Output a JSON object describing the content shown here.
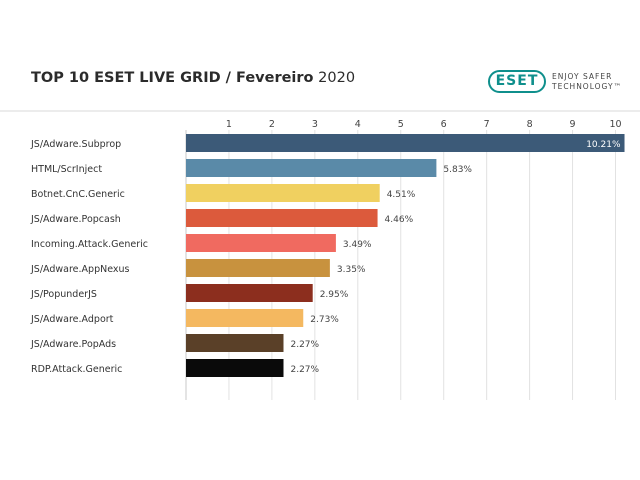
{
  "header": {
    "title_main": "TOP 10 ESET LIVE GRID / Fevereiro",
    "title_year": "2020"
  },
  "logo": {
    "wordmark": "ESET",
    "tagline_line1": "ENJOY SAFER",
    "tagline_line2": "TECHNOLOGY™",
    "color": "#0f8f8c"
  },
  "chart_data": {
    "type": "bar",
    "orientation": "horizontal",
    "categories": [
      "JS/Adware.Subprop",
      "HTML/ScrInject",
      "Botnet.CnC.Generic",
      "JS/Adware.Popcash",
      "Incoming.Attack.Generic",
      "JS/Adware.AppNexus",
      "JS/PopunderJS",
      "JS/Adware.Adport",
      "JS/Adware.PopAds",
      "RDP.Attack.Generic"
    ],
    "values": [
      10.21,
      5.83,
      4.51,
      4.46,
      3.49,
      3.35,
      2.95,
      2.73,
      2.27,
      2.27
    ],
    "value_labels": [
      "10.21%",
      "5.83%",
      "4.51%",
      "4.46%",
      "3.49%",
      "3.35%",
      "2.95%",
      "2.73%",
      "2.27%",
      "2.27%"
    ],
    "colors": [
      "#3c5a78",
      "#5a8aa8",
      "#f0d060",
      "#dc5a3c",
      "#f06a60",
      "#c8923e",
      "#8c2e1e",
      "#f4b860",
      "#5a4028",
      "#0a0a0a"
    ],
    "ticks": [
      1,
      2,
      3,
      4,
      5,
      6,
      7,
      8,
      9,
      10
    ],
    "tick_labels": [
      "1",
      "2",
      "3",
      "4",
      "5",
      "6",
      "7",
      "8",
      "9",
      "10"
    ],
    "xlim": [
      0,
      10.21
    ],
    "grid": true,
    "title": "TOP 10 ESET LIVE GRID / Fevereiro 2020",
    "xlabel": "",
    "ylabel": ""
  }
}
